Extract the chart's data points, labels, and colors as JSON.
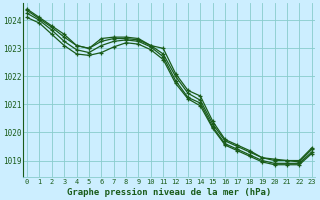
{
  "title": "Graphe pression niveau de la mer (hPa)",
  "background_color": "#cceeff",
  "grid_color": "#88cccc",
  "line_color": "#1a5c1a",
  "x_ticks": [
    0,
    1,
    2,
    3,
    4,
    5,
    6,
    7,
    8,
    9,
    10,
    11,
    12,
    13,
    14,
    15,
    16,
    17,
    18,
    19,
    20,
    21,
    22,
    23
  ],
  "ylim": [
    1018.4,
    1024.6
  ],
  "yticks": [
    1019,
    1020,
    1021,
    1022,
    1023,
    1024
  ],
  "series": [
    [
      1024.4,
      1024.1,
      1023.8,
      1023.5,
      1023.1,
      1023.0,
      1023.35,
      1023.4,
      1023.4,
      1023.35,
      1023.1,
      1023.0,
      1022.1,
      1021.5,
      1021.3,
      1020.4,
      1019.75,
      1019.55,
      1019.35,
      1019.1,
      1019.05,
      1019.0,
      1019.0,
      1019.45
    ],
    [
      1024.35,
      1024.05,
      1023.75,
      1023.4,
      1023.1,
      1023.0,
      1023.25,
      1023.35,
      1023.35,
      1023.3,
      1023.1,
      1022.8,
      1022.0,
      1021.4,
      1021.15,
      1020.3,
      1019.7,
      1019.5,
      1019.3,
      1019.1,
      1019.0,
      1019.0,
      1018.95,
      1019.4
    ],
    [
      1024.25,
      1024.0,
      1023.65,
      1023.25,
      1022.95,
      1022.85,
      1023.1,
      1023.25,
      1023.3,
      1023.25,
      1023.05,
      1022.7,
      1021.85,
      1021.25,
      1021.05,
      1020.2,
      1019.6,
      1019.4,
      1019.2,
      1019.0,
      1018.9,
      1018.9,
      1018.9,
      1019.3
    ],
    [
      1024.1,
      1023.9,
      1023.5,
      1023.1,
      1022.8,
      1022.75,
      1022.85,
      1023.05,
      1023.2,
      1023.15,
      1022.95,
      1022.6,
      1021.75,
      1021.2,
      1020.95,
      1020.15,
      1019.55,
      1019.35,
      1019.15,
      1018.95,
      1018.85,
      1018.85,
      1018.85,
      1019.25
    ]
  ]
}
